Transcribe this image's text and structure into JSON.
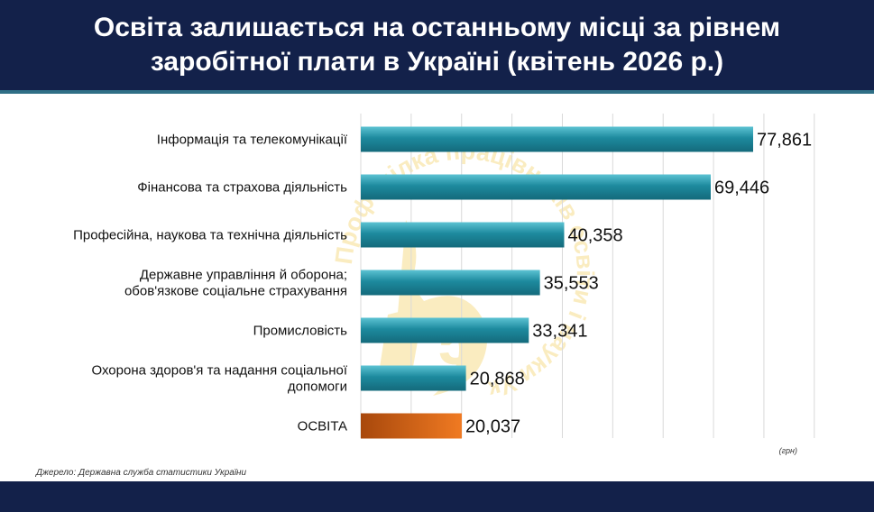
{
  "header": {
    "title": "Освіта залишається на останньому місці за рівнем заробітної плати в Україні (квітень 2026 р.)"
  },
  "chart_data": {
    "type": "bar",
    "orientation": "horizontal",
    "title": "Освіта залишається на останньому місці за рівнем заробітної плати в Україні (квітень 2026 р.)",
    "categories": [
      [
        "Інформація та телекомунікації"
      ],
      [
        "Фінансова та страхова діяльність"
      ],
      [
        "Професійна, наукова та технічна діяльність"
      ],
      [
        "Державне управління й оборона;",
        "обов'язкове соціальне страхування"
      ],
      [
        "Промисловість"
      ],
      [
        "Охорона здоров'я та надання соціальної",
        "допомоги"
      ],
      [
        "ОСВІТА"
      ]
    ],
    "values": [
      77861,
      69446,
      40358,
      35553,
      33341,
      20868,
      20037
    ],
    "value_labels": [
      "77,861",
      "69,446",
      "40,358",
      "35,553",
      "33,341",
      "20,868",
      "20,037"
    ],
    "highlight_index": 6,
    "unit_label": "(грн)",
    "xlim": [
      0,
      90000
    ],
    "grid": true,
    "colors": {
      "bar": "#1d8a9e",
      "bar_light": "#5cc3d3",
      "highlight": "#e06a17",
      "highlight_dark": "#a8480c"
    }
  },
  "source": "Джерело: Державна служба статистики України",
  "watermark": {
    "text": "Профспілка працівників освіти і науки України",
    "digit": "5"
  }
}
